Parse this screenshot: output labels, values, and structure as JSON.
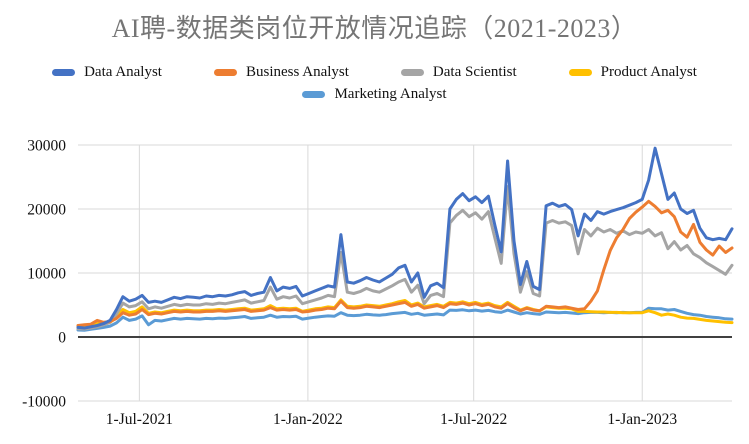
{
  "chart_data": {
    "type": "line",
    "title": "AI聘-数据类岗位开放情况追踪（2021-2023）",
    "xlabel": "",
    "ylabel": "",
    "grid": true,
    "legend_position": "top",
    "ylim": [
      -10000,
      30000
    ],
    "y_ticks": [
      -10000,
      0,
      10000,
      20000,
      30000
    ],
    "x": {
      "start_date": "2021-04-25",
      "interval_days": 7,
      "points": 103,
      "end_date": "2023-04-09"
    },
    "x_ticks": [
      {
        "label": "1-Jul-2021",
        "date": "2021-07-01"
      },
      {
        "label": "1-Jan-2022",
        "date": "2022-01-01"
      },
      {
        "label": "1-Jul-2022",
        "date": "2022-07-01"
      },
      {
        "label": "1-Jan-2023",
        "date": "2023-01-01"
      }
    ],
    "series": [
      {
        "name": "Data Analyst",
        "color": "#4472C4",
        "values": [
          1500,
          1400,
          1600,
          1800,
          2100,
          2600,
          4300,
          6300,
          5600,
          5900,
          6500,
          5400,
          5600,
          5400,
          5800,
          6200,
          6000,
          6300,
          6200,
          6100,
          6400,
          6300,
          6500,
          6400,
          6600,
          6900,
          7100,
          6500,
          6800,
          7000,
          9300,
          7200,
          7800,
          7600,
          7900,
          6400,
          6800,
          7200,
          7600,
          8000,
          7800,
          16000,
          8600,
          8400,
          8800,
          9300,
          8900,
          8600,
          9200,
          9800,
          10800,
          11200,
          8600,
          10000,
          6200,
          8000,
          8400,
          7700,
          20000,
          21500,
          22400,
          21300,
          21900,
          21000,
          22000,
          17500,
          13300,
          27500,
          15000,
          8200,
          11800,
          7900,
          7400,
          20500,
          20900,
          20400,
          20700,
          19900,
          15800,
          19200,
          18200,
          19600,
          19200,
          19600,
          19900,
          20200,
          20600,
          21000,
          21500,
          24500,
          29500,
          25500,
          21500,
          22500,
          20000,
          19300,
          19800,
          17000,
          15500,
          15200,
          15400,
          15200,
          16900
        ]
      },
      {
        "name": "Business Analyst",
        "color": "#ED7D31",
        "values": [
          1800,
          1900,
          2000,
          2600,
          2300,
          2400,
          2900,
          3800,
          3400,
          3600,
          4300,
          3500,
          3700,
          3600,
          3800,
          4000,
          3900,
          4000,
          3900,
          3900,
          4000,
          4000,
          4100,
          4000,
          4100,
          4200,
          4300,
          4000,
          4100,
          4200,
          4600,
          4200,
          4300,
          4200,
          4300,
          3900,
          4000,
          4200,
          4300,
          4500,
          4400,
          5600,
          4600,
          4500,
          4600,
          4800,
          4700,
          4600,
          4800,
          5000,
          5200,
          5400,
          4800,
          5100,
          4500,
          4700,
          4900,
          4600,
          5200,
          5100,
          5300,
          5000,
          5200,
          4900,
          5100,
          4700,
          4500,
          5200,
          4600,
          4100,
          4500,
          4200,
          4100,
          4800,
          4700,
          4600,
          4700,
          4500,
          4300,
          4400,
          5600,
          7200,
          10500,
          13500,
          15500,
          16800,
          18500,
          19500,
          20300,
          21200,
          20400,
          19400,
          19800,
          18800,
          16400,
          15600,
          17600,
          14800,
          13600,
          12800,
          14200,
          13200,
          13900
        ]
      },
      {
        "name": "Data Scientist",
        "color": "#A5A5A5",
        "values": [
          1300,
          1250,
          1400,
          1600,
          1900,
          2300,
          3600,
          5300,
          4700,
          4900,
          5500,
          4400,
          4700,
          4500,
          4800,
          5100,
          4900,
          5100,
          5000,
          5000,
          5200,
          5100,
          5300,
          5200,
          5400,
          5600,
          5800,
          5300,
          5500,
          5700,
          7800,
          5900,
          6300,
          6100,
          6400,
          5200,
          5500,
          5800,
          6100,
          6500,
          6300,
          13200,
          7000,
          6800,
          7100,
          7600,
          7200,
          7000,
          7500,
          8000,
          8600,
          9000,
          7000,
          8100,
          5200,
          6500,
          6800,
          6300,
          17800,
          19000,
          19800,
          18800,
          19400,
          18400,
          19600,
          15500,
          11500,
          23500,
          13000,
          7000,
          10200,
          6800,
          6400,
          17800,
          18200,
          17800,
          18000,
          17400,
          13000,
          16800,
          15800,
          17000,
          16400,
          16800,
          16200,
          16600,
          16000,
          16400,
          16200,
          16800,
          15800,
          16300,
          13800,
          14900,
          13600,
          14300,
          13000,
          12400,
          11600,
          11000,
          10400,
          9800,
          11200
        ]
      },
      {
        "name": "Product Analyst",
        "color": "#FFC000",
        "values": [
          1700,
          1800,
          1900,
          2100,
          2200,
          2300,
          3100,
          4300,
          3800,
          4000,
          4700,
          3700,
          3900,
          3800,
          4000,
          4200,
          4100,
          4200,
          4100,
          4100,
          4200,
          4200,
          4300,
          4200,
          4300,
          4400,
          4500,
          4200,
          4300,
          4400,
          4900,
          4400,
          4500,
          4400,
          4500,
          4000,
          4200,
          4400,
          4500,
          4700,
          4600,
          5800,
          4800,
          4700,
          4800,
          5000,
          4900,
          4800,
          5000,
          5200,
          5500,
          5700,
          5000,
          5300,
          4700,
          4900,
          5100,
          4800,
          5400,
          5300,
          5500,
          5200,
          5400,
          5100,
          5300,
          4900,
          4700,
          5400,
          4800,
          4200,
          4600,
          4300,
          4100,
          4700,
          4600,
          4500,
          4500,
          4400,
          4000,
          4000,
          3950,
          3900,
          3900,
          3850,
          3850,
          3800,
          3800,
          3800,
          3800,
          4100,
          3800,
          3400,
          3600,
          3400,
          3100,
          2950,
          2900,
          2750,
          2600,
          2500,
          2400,
          2300,
          2250
        ]
      },
      {
        "name": "Marketing Analyst",
        "color": "#5B9BD5",
        "values": [
          1100,
          1050,
          1200,
          1350,
          1500,
          1700,
          2200,
          3100,
          2600,
          2800,
          3300,
          1900,
          2600,
          2500,
          2700,
          2900,
          2800,
          2900,
          2850,
          2800,
          2900,
          2850,
          2950,
          2900,
          3000,
          3100,
          3200,
          2900,
          3000,
          3100,
          3400,
          3100,
          3200,
          3150,
          3250,
          2800,
          2950,
          3100,
          3200,
          3300,
          3250,
          3800,
          3400,
          3350,
          3400,
          3550,
          3450,
          3400,
          3500,
          3650,
          3750,
          3850,
          3550,
          3700,
          3400,
          3500,
          3600,
          3450,
          4200,
          4150,
          4250,
          4100,
          4200,
          4050,
          4150,
          3950,
          3850,
          4200,
          3900,
          3600,
          3800,
          3650,
          3550,
          3900,
          3850,
          3800,
          3850,
          3750,
          3650,
          3800,
          3850,
          3850,
          3800,
          3850,
          3800,
          3850,
          3800,
          3850,
          3850,
          4500,
          4400,
          4400,
          4200,
          4300,
          4000,
          3700,
          3500,
          3400,
          3200,
          3100,
          3000,
          2850,
          2800
        ]
      }
    ],
    "colors": {
      "title_text": "#757575",
      "axis_text": "#111111",
      "gridline": "#D9D9D9",
      "zero_line": "#404040"
    }
  }
}
